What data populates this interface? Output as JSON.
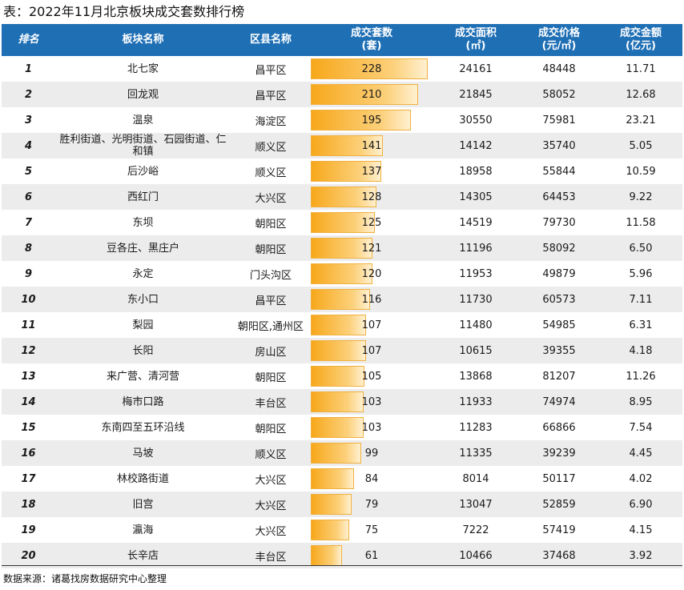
{
  "title": "表：2022年11月北京板块成交套数排行榜",
  "headers": {
    "rank": "排名",
    "area": "板块名称",
    "district": "区县名称",
    "units": "成交套数",
    "units_unit": "(套)",
    "size": "成交面积",
    "size_unit": "(㎡)",
    "price": "成交价格",
    "price_unit": "(元/㎡)",
    "amount": "成交金额",
    "amount_unit": "(亿元)"
  },
  "rows": [
    {
      "rank": "1",
      "area": "北七家",
      "district": "昌平区",
      "units": "228",
      "size": "24161",
      "price": "48448",
      "amount": "11.71"
    },
    {
      "rank": "2",
      "area": "回龙观",
      "district": "昌平区",
      "units": "210",
      "size": "21845",
      "price": "58052",
      "amount": "12.68"
    },
    {
      "rank": "3",
      "area": "温泉",
      "district": "海淀区",
      "units": "195",
      "size": "30550",
      "price": "75981",
      "amount": "23.21"
    },
    {
      "rank": "4",
      "area": "胜利街道、光明街道、石园街道、仁和镇",
      "district": "顺义区",
      "units": "141",
      "size": "14142",
      "price": "35740",
      "amount": "5.05"
    },
    {
      "rank": "5",
      "area": "后沙峪",
      "district": "顺义区",
      "units": "137",
      "size": "18958",
      "price": "55844",
      "amount": "10.59"
    },
    {
      "rank": "6",
      "area": "西红门",
      "district": "大兴区",
      "units": "128",
      "size": "14305",
      "price": "64453",
      "amount": "9.22"
    },
    {
      "rank": "7",
      "area": "东坝",
      "district": "朝阳区",
      "units": "125",
      "size": "14519",
      "price": "79730",
      "amount": "11.58"
    },
    {
      "rank": "8",
      "area": "豆各庄、黑庄户",
      "district": "朝阳区",
      "units": "121",
      "size": "11196",
      "price": "58092",
      "amount": "6.50"
    },
    {
      "rank": "9",
      "area": "永定",
      "district": "门头沟区",
      "units": "120",
      "size": "11953",
      "price": "49879",
      "amount": "5.96"
    },
    {
      "rank": "10",
      "area": "东小口",
      "district": "昌平区",
      "units": "116",
      "size": "11730",
      "price": "60573",
      "amount": "7.11"
    },
    {
      "rank": "11",
      "area": "梨园",
      "district": "朝阳区,通州区",
      "units": "107",
      "size": "11480",
      "price": "54985",
      "amount": "6.31"
    },
    {
      "rank": "12",
      "area": "长阳",
      "district": "房山区",
      "units": "107",
      "size": "10615",
      "price": "39355",
      "amount": "4.18"
    },
    {
      "rank": "13",
      "area": "来广营、清河营",
      "district": "朝阳区",
      "units": "105",
      "size": "13868",
      "price": "81207",
      "amount": "11.26"
    },
    {
      "rank": "14",
      "area": "梅市口路",
      "district": "丰台区",
      "units": "103",
      "size": "11933",
      "price": "74974",
      "amount": "8.95"
    },
    {
      "rank": "15",
      "area": "东南四至五环沿线",
      "district": "朝阳区",
      "units": "103",
      "size": "11283",
      "price": "66866",
      "amount": "7.54"
    },
    {
      "rank": "16",
      "area": "马坡",
      "district": "顺义区",
      "units": "99",
      "size": "11335",
      "price": "39239",
      "amount": "4.45"
    },
    {
      "rank": "17",
      "area": "林校路街道",
      "district": "大兴区",
      "units": "84",
      "size": "8014",
      "price": "50117",
      "amount": "4.02"
    },
    {
      "rank": "18",
      "area": "旧宫",
      "district": "大兴区",
      "units": "79",
      "size": "13047",
      "price": "52859",
      "amount": "6.90"
    },
    {
      "rank": "19",
      "area": "瀛海",
      "district": "大兴区",
      "units": "75",
      "size": "7222",
      "price": "57419",
      "amount": "4.15"
    },
    {
      "rank": "20",
      "area": "长辛店",
      "district": "丰台区",
      "units": "61",
      "size": "10466",
      "price": "37468",
      "amount": "3.92"
    }
  ],
  "bar_max_units": 228,
  "colors": {
    "header_bg": "#1f6fb5",
    "bar": "#f7a81b",
    "row_alt": "#ececec"
  },
  "source": "数据来源：诸葛找房数据研究中心整理"
}
